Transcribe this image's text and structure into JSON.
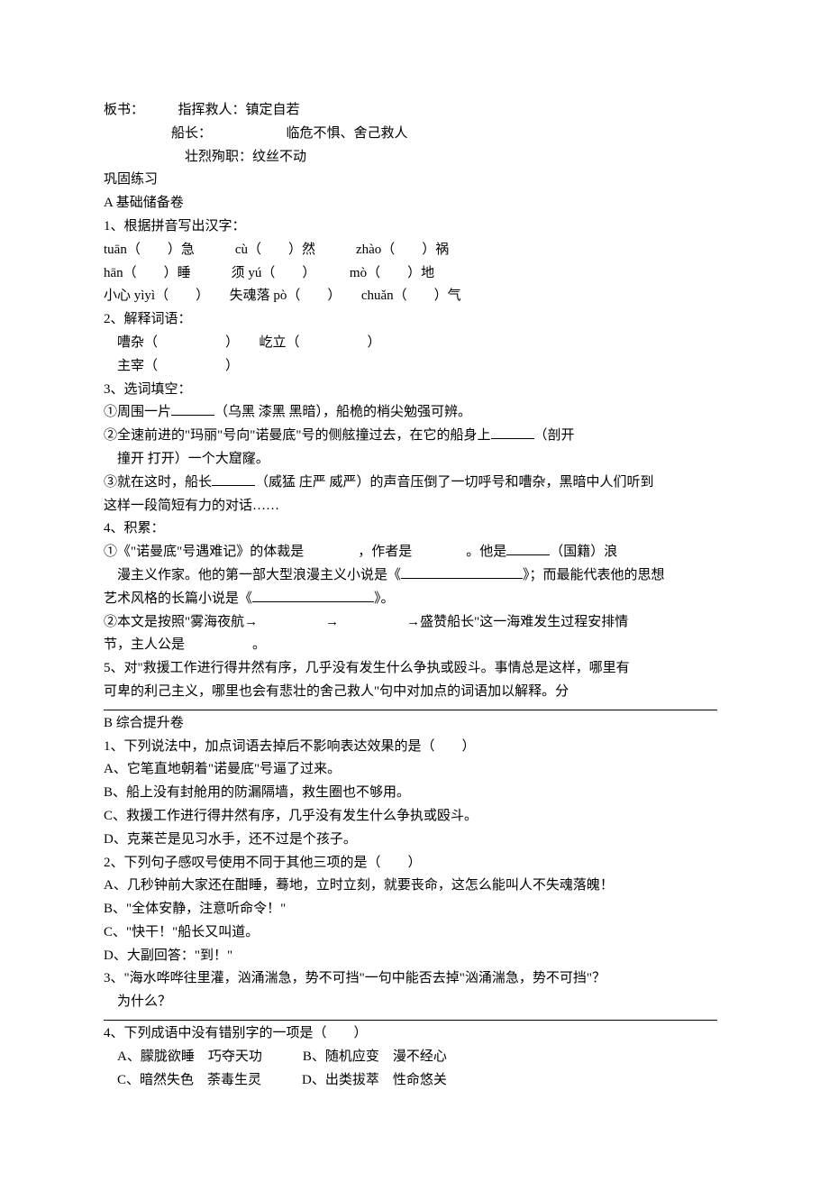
{
  "blackboard": {
    "prefix": "板书：",
    "command_rescue_label": "指挥救人：",
    "command_rescue_value": "镇定自若",
    "captain_label": "船长：",
    "captain_quality": "临危不惧、舍己救人",
    "sacrifice_label": "壮烈殉职：",
    "sacrifice_value": "纹丝不动"
  },
  "consolidate": "巩固练习",
  "sectionA": {
    "title": "A 基础储备卷",
    "q1": {
      "title": "1、根据拼音写出汉字：",
      "row1": "tuān（　　）急　　　cù（　　）然　　　zhào（　　）祸",
      "row2": "hān（　　）睡　　　须 yú（　　）　　　mò（　　）地",
      "row3": "小心 yìyì（　　）　　失魂落 pò（　　）　　chuǎn（　　）气"
    },
    "q2": {
      "title": "2、解释词语：",
      "row1": "　嘈杂（　　　　　）　　屹立（　　　　　）",
      "row2": "　主宰（　　　　　）"
    },
    "q3": {
      "title": "3、选词填空：",
      "i1a": "①周围一片",
      "i1b": "（乌黑 漆黑 黑暗），船桅的梢尖勉强可辨。",
      "i2a": "②全速前进的\"玛丽\"号向\"诺曼底\"号的侧舷撞过去，在它的船身上",
      "i2b": "（剖开",
      "i2c": "　撞开 打开）一个大窟窿。",
      "i3a": "③就在这时，船长",
      "i3b": "（威猛 庄严 威严）的声音压倒了一切呼号和嘈杂，黑暗中人们听到",
      "i3c": "这样一段简短有力的对话……"
    },
    "q4": {
      "title": "4、积累：",
      "i1a": "①《\"诺曼底\"号遇难记》的体裁是　　　　，作者是　　　　。他是",
      "i1b": "（国籍）浪",
      "i1c": "　漫主义作家。他的第一部大型浪漫主义小说是《",
      "i1d": "》；而最能代表他的思想",
      "i1e": "艺术风格的长篇小说是《",
      "i1f": "》。",
      "i2a": "②本文是按照\"雾海夜航→　　　　　→　　　　　→盛赞船长\"这一海难发生过程安排情",
      "i2b": "节，主人公是　　　　　。"
    },
    "q5": {
      "l1": "5、对\"救援工作进行得井然有序，几乎没有发生什么争执或殴斗。事情总是这样，哪里有",
      "l2": "可卑的利己主义，哪里也会有悲壮的舍己救人\"句中对加点的词语加以解释。分"
    }
  },
  "sectionB": {
    "title": "B 综合提升卷",
    "q1": {
      "stem": "1、下列说法中，加点词语去掉后不影响表达效果的是（　　）",
      "a": "A、它笔直地朝着\"诺曼底\"号逼了过来。",
      "b": "B、船上没有封舱用的防漏隔墙，救生圈也不够用。",
      "c": "C、救援工作进行得井然有序，几乎没有发生什么争执或殴斗。",
      "d": "D、克莱芒是见习水手，还不过是个孩子。"
    },
    "q2": {
      "stem": "2、下列句子感叹号使用不同于其他三项的是（　　）",
      "a": "A、几秒钟前大家还在酣睡，蓦地，立时立刻，就要丧命，这怎么能叫人不失魂落魄！",
      "b": "B、\"全体安静，注意听命令！\"",
      "c": "C、\"快干！\"船长又叫道。",
      "d": "D、大副回答：\"到！\""
    },
    "q3": {
      "l1": "3、\"海水哗哗往里灌，汹涌湍急，势不可挡\"一句中能否去掉\"汹涌湍急，势不可挡\"？",
      "l2": "　为什么？"
    },
    "q4": {
      "stem": "4、下列成语中没有错别字的一项是（　　）",
      "row1": "　A、朦胧欲睡　巧夺天功　　　B、随机应变　漫不经心",
      "row2": "　C、暗然失色　荼毒生灵　　　D、出类拔萃　性命悠关"
    }
  }
}
